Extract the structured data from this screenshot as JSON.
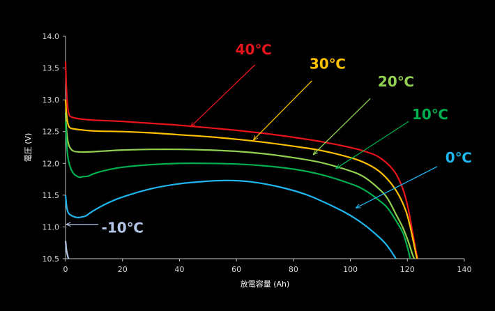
{
  "chart_data": {
    "type": "line",
    "xlabel": "放電容量 (Ah)",
    "ylabel": "電圧 (V)",
    "xlim": [
      0,
      140
    ],
    "ylim": [
      10.5,
      14.0
    ],
    "x_ticks": [
      "0",
      "20",
      "40",
      "60",
      "80",
      "100",
      "120",
      "140"
    ],
    "y_ticks": [
      "10.5",
      "11.0",
      "11.5",
      "12.0",
      "12.5",
      "13.0",
      "13.5",
      "14.0"
    ],
    "grid": false,
    "series": [
      {
        "name": "40℃",
        "color": "#e8141b",
        "x": [
          0,
          0.3,
          0.7,
          1.2,
          2,
          5,
          10,
          20,
          30,
          40,
          50,
          60,
          70,
          80,
          90,
          100,
          105,
          110,
          115,
          118,
          120,
          121.5,
          122.5,
          123.2,
          123.7
        ],
        "y": [
          13.6,
          13.2,
          12.9,
          12.78,
          12.73,
          12.7,
          12.68,
          12.66,
          12.63,
          12.6,
          12.56,
          12.52,
          12.47,
          12.41,
          12.34,
          12.25,
          12.19,
          12.1,
          11.9,
          11.65,
          11.35,
          11.0,
          10.75,
          10.58,
          10.5
        ]
      },
      {
        "name": "30℃",
        "color": "#ffc000",
        "x": [
          0,
          0.3,
          0.7,
          1.2,
          2,
          5,
          10,
          20,
          30,
          40,
          50,
          60,
          70,
          80,
          90,
          100,
          105,
          110,
          114,
          117,
          119.5,
          121,
          122.2,
          123,
          123.4
        ],
        "y": [
          13.0,
          12.8,
          12.65,
          12.58,
          12.55,
          12.53,
          12.51,
          12.5,
          12.48,
          12.45,
          12.42,
          12.38,
          12.33,
          12.27,
          12.2,
          12.09,
          12.01,
          11.88,
          11.7,
          11.5,
          11.25,
          11.0,
          10.75,
          10.58,
          10.5
        ]
      },
      {
        "name": "20℃",
        "color": "#92d050",
        "x": [
          0,
          0.3,
          0.7,
          1.2,
          2,
          3,
          5,
          8,
          12,
          20,
          30,
          40,
          50,
          60,
          70,
          80,
          90,
          100,
          105,
          110,
          113,
          116,
          118.5,
          120.5,
          121.7,
          122.4
        ],
        "y": [
          12.8,
          12.55,
          12.38,
          12.28,
          12.22,
          12.19,
          12.18,
          12.18,
          12.19,
          12.21,
          12.22,
          12.22,
          12.21,
          12.19,
          12.15,
          12.09,
          12.01,
          11.88,
          11.78,
          11.6,
          11.45,
          11.2,
          10.98,
          10.75,
          10.58,
          10.5
        ]
      },
      {
        "name": "10℃",
        "color": "#00b050",
        "x": [
          0,
          0.4,
          1,
          2,
          3,
          4,
          5,
          6,
          8,
          10,
          15,
          20,
          30,
          40,
          50,
          60,
          70,
          80,
          90,
          100,
          105,
          110,
          113,
          116,
          118.5,
          120.2,
          121
        ],
        "y": [
          12.65,
          12.3,
          12.05,
          11.9,
          11.83,
          11.8,
          11.78,
          11.79,
          11.8,
          11.84,
          11.9,
          11.94,
          11.98,
          12.0,
          12.0,
          11.99,
          11.96,
          11.91,
          11.82,
          11.68,
          11.58,
          11.42,
          11.3,
          11.1,
          10.9,
          10.65,
          10.5
        ]
      },
      {
        "name": "0℃",
        "color": "#1fb5ee",
        "x": [
          0,
          0.4,
          1,
          2,
          3,
          4,
          5,
          6,
          7,
          8,
          10,
          15,
          20,
          30,
          40,
          50,
          57,
          65,
          75,
          85,
          95,
          100,
          105,
          108,
          111,
          113,
          115,
          116
        ],
        "y": [
          11.5,
          11.32,
          11.22,
          11.18,
          11.16,
          11.15,
          11.15,
          11.16,
          11.17,
          11.2,
          11.26,
          11.38,
          11.47,
          11.6,
          11.68,
          11.72,
          11.73,
          11.71,
          11.63,
          11.5,
          11.3,
          11.18,
          11.03,
          10.92,
          10.8,
          10.7,
          10.57,
          10.5
        ]
      },
      {
        "name": "-10℃",
        "color": "#b4c7e7",
        "x": [
          0,
          0.3,
          0.6,
          0.9,
          1.1
        ],
        "y": [
          10.78,
          10.65,
          10.57,
          10.52,
          10.5
        ]
      }
    ],
    "annotations": [
      {
        "text": "40℃",
        "color": "#e8141b",
        "label_pos": [
          66,
          13.8
        ],
        "arrow_from": [
          66.5,
          13.55
        ],
        "arrow_to": [
          44,
          12.58
        ]
      },
      {
        "text": "30℃",
        "color": "#ffc000",
        "label_pos": [
          92,
          13.58
        ],
        "arrow_from": [
          86.5,
          13.3
        ],
        "arrow_to": [
          66,
          12.37
        ]
      },
      {
        "text": "20℃",
        "color": "#92d050",
        "label_pos": [
          116,
          13.3
        ],
        "arrow_from": [
          107,
          13.02
        ],
        "arrow_to": [
          87,
          12.14
        ]
      },
      {
        "text": "10℃",
        "color": "#00b050",
        "label_pos": [
          128,
          12.78
        ],
        "arrow_from": [
          120.5,
          12.66
        ],
        "arrow_to": [
          95,
          11.92
        ]
      },
      {
        "text": "0℃",
        "color": "#1fb5ee",
        "label_pos": [
          138,
          12.1
        ],
        "arrow_from": [
          130.5,
          11.95
        ],
        "arrow_to": [
          102,
          11.3
        ]
      },
      {
        "text": "-10℃",
        "color": "#b4c7e7",
        "label_pos": [
          20,
          11.0
        ],
        "arrow_from": [
          11.5,
          11.04
        ],
        "arrow_to": [
          0.3,
          11.04
        ]
      }
    ]
  }
}
